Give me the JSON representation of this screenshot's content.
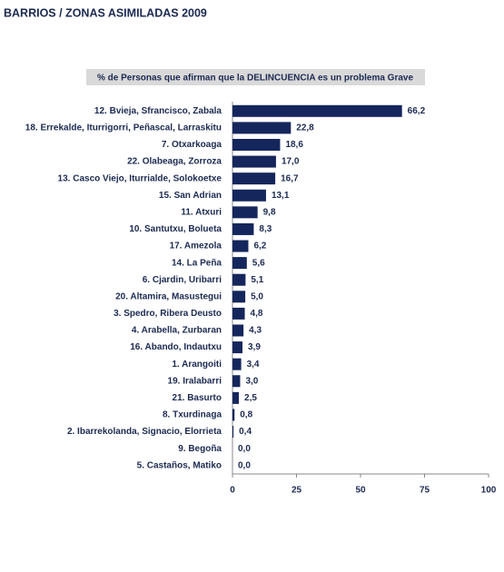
{
  "chart_data": {
    "type": "barh",
    "title": "BARRIOS / ZONAS ASIMILADAS 2009",
    "subtitle": "% de Personas que afirman que la DELINCUENCIA es un problema Grave",
    "categories": [
      "12. Bvieja, Sfrancisco, Zabala",
      "18. Errekalde, Iturrigorri, Peñascal, Larraskitu",
      "7. Otxarkoaga",
      "22. Olabeaga, Zorroza",
      "13. Casco Viejo, Iturrialde, Solokoetxe",
      "15. San Adrian",
      "11. Atxuri",
      "10. Santutxu, Bolueta",
      "17. Amezola",
      "14. La Peña",
      "6. Cjardin, Uribarri",
      "20. Altamira, Masustegui",
      "3. Spedro, Ribera Deusto",
      "4. Arabella, Zurbaran",
      "16. Abando, Indautxu",
      "1. Arangoiti",
      "19. Iralabarri",
      "21. Basurto",
      "8. Txurdinaga",
      "2. Ibarrekolanda, Signacio, Elorrieta",
      "9. Begoña",
      "5. Castaños, Matiko"
    ],
    "values": [
      66.2,
      22.8,
      18.6,
      17.0,
      16.7,
      13.1,
      9.8,
      8.3,
      6.2,
      5.6,
      5.1,
      5.0,
      4.8,
      4.3,
      3.9,
      3.4,
      3.0,
      2.5,
      0.8,
      0.4,
      0.0,
      0.0
    ],
    "value_labels": [
      "66,2",
      "22,8",
      "18,6",
      "17,0",
      "16,7",
      "13,1",
      "9,8",
      "8,3",
      "6,2",
      "5,6",
      "5,1",
      "5,0",
      "4,8",
      "4,3",
      "3,9",
      "3,4",
      "3,0",
      "2,5",
      "0,8",
      "0,4",
      "0,0",
      "0,0"
    ],
    "color": "#15265c",
    "xlim": [
      0,
      100
    ],
    "xticks": [
      0,
      25,
      50,
      75,
      100
    ],
    "grid": false
  }
}
